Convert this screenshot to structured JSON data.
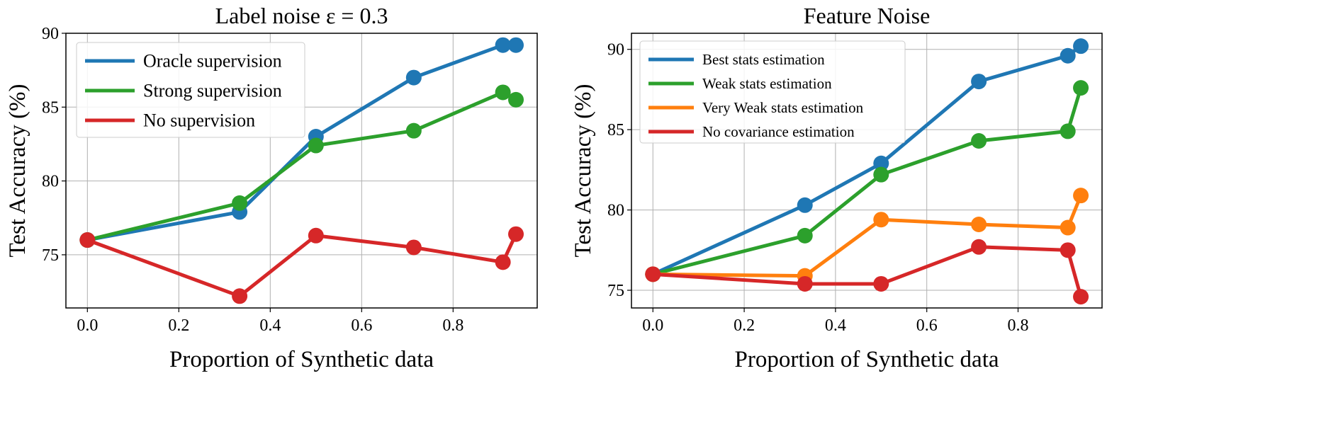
{
  "colors": {
    "blue": "#1f77b4",
    "green": "#2ca02c",
    "orange": "#ff7f0e",
    "red": "#d62728"
  },
  "chart_data": [
    {
      "type": "line",
      "title": "Label noise ε = 0.3",
      "xlabel": "Proportion of Synthetic data",
      "ylabel": "Test Accuracy (%)",
      "xlim": [
        -0.047,
        0.984
      ],
      "ylim": [
        71.4,
        90.0
      ],
      "xticks": [
        0.0,
        0.2,
        0.4,
        0.6,
        0.8
      ],
      "xtick_labels": [
        "0.0",
        "0.2",
        "0.4",
        "0.6",
        "0.8"
      ],
      "yticks": [
        75,
        80,
        85,
        90
      ],
      "ytick_labels": [
        "75",
        "80",
        "85",
        "90"
      ],
      "grid": true,
      "legend_position": "top-left",
      "x": [
        0.0,
        0.333,
        0.5,
        0.714,
        0.909,
        0.9375
      ],
      "series": [
        {
          "name": "Oracle supervision",
          "color": "#1f77b4",
          "values": [
            76.0,
            77.9,
            83.0,
            87.0,
            89.2,
            89.2
          ]
        },
        {
          "name": "Strong supervision",
          "color": "#2ca02c",
          "values": [
            76.0,
            78.5,
            82.4,
            83.4,
            86.0,
            85.5
          ]
        },
        {
          "name": "No supervision",
          "color": "#d62728",
          "values": [
            76.0,
            72.2,
            76.3,
            75.5,
            74.5,
            76.4
          ]
        }
      ]
    },
    {
      "type": "line",
      "title": "Feature Noise",
      "xlabel": "Proportion of Synthetic data",
      "ylabel": "Test Accuracy (%)",
      "xlim": [
        -0.047,
        0.984
      ],
      "ylim": [
        73.9,
        91.0
      ],
      "xticks": [
        0.0,
        0.2,
        0.4,
        0.6,
        0.8
      ],
      "xtick_labels": [
        "0.0",
        "0.2",
        "0.4",
        "0.6",
        "0.8"
      ],
      "yticks": [
        75,
        80,
        85,
        90
      ],
      "ytick_labels": [
        "75",
        "80",
        "85",
        "90"
      ],
      "grid": true,
      "legend_position": "top-left",
      "x": [
        0.0,
        0.333,
        0.5,
        0.714,
        0.909,
        0.9375
      ],
      "series": [
        {
          "name": "Best stats estimation",
          "color": "#1f77b4",
          "values": [
            76.0,
            80.3,
            82.9,
            88.0,
            89.6,
            90.2
          ]
        },
        {
          "name": "Weak stats estimation",
          "color": "#2ca02c",
          "values": [
            76.0,
            78.4,
            82.2,
            84.3,
            84.9,
            87.6
          ]
        },
        {
          "name": "Very Weak stats estimation",
          "color": "#ff7f0e",
          "values": [
            76.0,
            75.9,
            79.4,
            79.1,
            78.9,
            80.9
          ]
        },
        {
          "name": "No covariance estimation",
          "color": "#d62728",
          "values": [
            76.0,
            75.4,
            75.4,
            77.7,
            77.5,
            74.6
          ]
        }
      ]
    }
  ]
}
